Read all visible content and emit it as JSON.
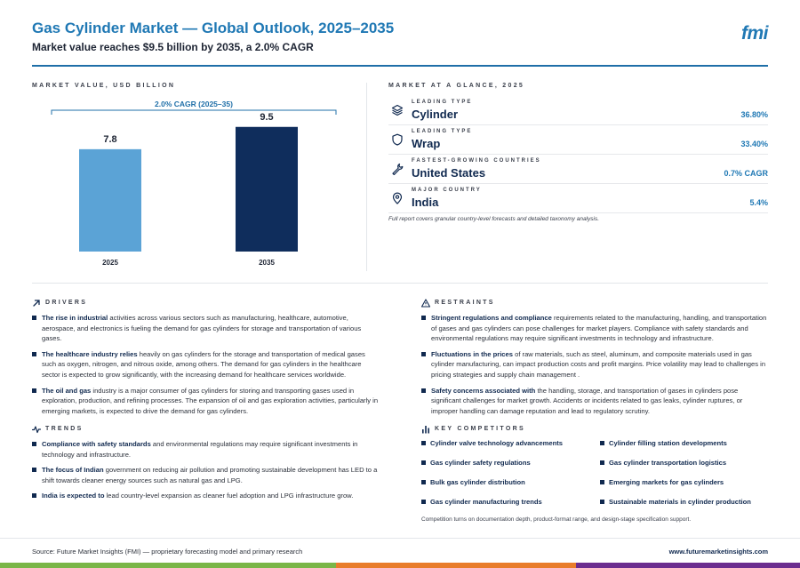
{
  "header": {
    "title": "Gas Cylinder Market — Global Outlook, 2025–2035",
    "subtitle": "Market value reaches $9.5 billion by 2035, a 2.0% CAGR",
    "logo": "fmi"
  },
  "chart_section": {
    "label": "MARKET VALUE, USD BILLION"
  },
  "chart_data": {
    "type": "bar",
    "categories": [
      "2025",
      "2035"
    ],
    "values": [
      7.8,
      9.5
    ],
    "annotation": "2.0% CAGR (2025–35)",
    "ylabel": "",
    "xlabel": "",
    "ylim": [
      0,
      10.5
    ],
    "colors": [
      "#5ba3d6",
      "#0f2d5c"
    ]
  },
  "glance": {
    "label": "MARKET AT A GLANCE, 2025",
    "items": [
      {
        "kicker": "LEADING TYPE",
        "name": "Cylinder",
        "value": "36.80%",
        "icon": "layers-icon"
      },
      {
        "kicker": "LEADING TYPE",
        "name": "Wrap",
        "value": "33.40%",
        "icon": "shield-icon"
      },
      {
        "kicker": "FASTEST-GROWING COUNTRIES",
        "name": "United States",
        "value": "0.7% CAGR",
        "icon": "wrench-icon"
      },
      {
        "kicker": "MAJOR COUNTRY",
        "name": "India",
        "value": "5.4%",
        "icon": "map-pin-icon"
      }
    ],
    "note": "Full report covers granular country-level forecasts and detailed taxonomy analysis."
  },
  "drivers": {
    "label": "DRIVERS",
    "items": [
      {
        "lead": "The rise in industrial",
        "text": " activities across various sectors such as manufacturing, healthcare, automotive, aerospace, and electronics is fueling the demand for gas cylinders for storage and transportation of various gases."
      },
      {
        "lead": "The healthcare industry relies",
        "text": " heavily on gas cylinders for the storage and transportation of medical gases such as oxygen, nitrogen, and nitrous oxide, among others. The demand for gas cylinders in the healthcare sector is expected to grow significantly, with the increasing demand for healthcare services worldwide."
      },
      {
        "lead": "The oil and gas",
        "text": " industry is a major consumer of gas cylinders for storing and transporting gases used in exploration, production, and refining processes. The expansion of oil and gas exploration activities, particularly in emerging markets, is expected to drive the demand for gas cylinders."
      }
    ]
  },
  "restraints": {
    "label": "RESTRAINTS",
    "items": [
      {
        "lead": "Stringent regulations and compliance",
        "text": " requirements related to the manufacturing, handling, and transportation of gases and gas cylinders can pose challenges for market players. Compliance with safety standards and environmental regulations may require significant investments in technology and infrastructure."
      },
      {
        "lead": "Fluctuations in the prices",
        "text": " of raw materials, such as steel, aluminum, and composite materials used in gas cylinder manufacturing, can impact production costs and profit margins. Price volatility may lead to challenges in pricing strategies and supply chain management ."
      },
      {
        "lead": "Safety concerns associated with",
        "text": " the handling, storage, and transportation of gases in cylinders pose significant challenges for market growth. Accidents or incidents related to gas leaks, cylinder ruptures, or improper handling can damage reputation and lead to regulatory scrutiny."
      }
    ]
  },
  "trends": {
    "label": "TRENDS",
    "items": [
      {
        "lead": "Compliance with safety standards",
        "text": " and environmental regulations may require significant investments in technology and infrastructure."
      },
      {
        "lead": "The focus of Indian",
        "text": " government on reducing air pollution and promoting sustainable development has LED to a shift towards cleaner energy sources such as natural gas and LPG."
      },
      {
        "lead": "India is expected to",
        "text": " lead country-level expansion as cleaner fuel adoption and LPG infrastructure grow."
      }
    ]
  },
  "competitors": {
    "label": "KEY COMPETITORS",
    "items": [
      "Cylinder valve technology advancements",
      "Cylinder filling station developments",
      "Gas cylinder safety regulations",
      "Gas cylinder transportation logistics",
      "Bulk gas cylinder distribution",
      "Emerging markets for gas cylinders",
      "Gas cylinder manufacturing trends",
      "Sustainable materials in cylinder production"
    ],
    "note": "Competition turns on documentation depth, product-format range, and design-stage specification support."
  },
  "footer": {
    "source": "Source: Future Market Insights (FMI) — proprietary forecasting model and primary research",
    "url": "www.futuremarketinsights.com"
  },
  "colors": {
    "accent": "#1f78b4",
    "navy": "#10294f",
    "band_green": "#7ab648",
    "band_orange": "#e97d2b",
    "band_purple": "#6b2d8f"
  }
}
